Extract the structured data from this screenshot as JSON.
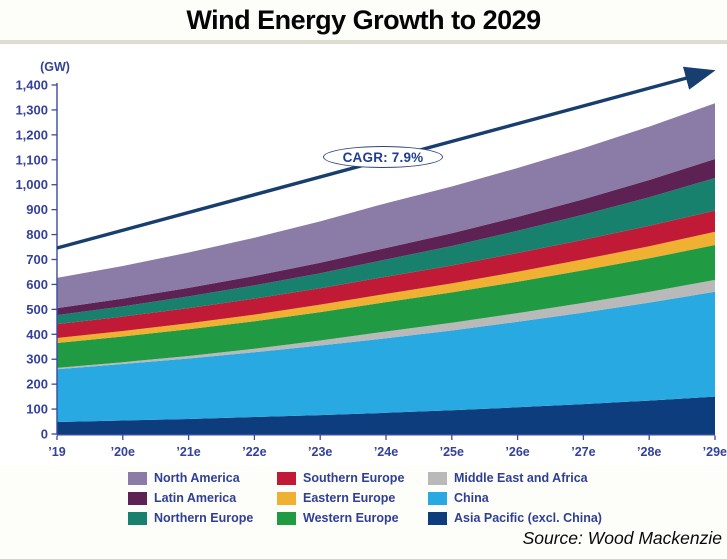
{
  "page": {
    "source": "Source: Wood Mackenzie"
  },
  "chart_data": {
    "type": "area",
    "stacked": true,
    "title": "Wind Energy Growth to 2029",
    "unit_label": "(GW)",
    "cagr_label": "CAGR: 7.9%",
    "categories": [
      "’19",
      "’20e",
      "’21e",
      "’22e",
      "’23e",
      "’24e",
      "’25e",
      "’26e",
      "’27e",
      "’28e",
      "’29e"
    ],
    "ylim": [
      0,
      1400
    ],
    "ytick_step": 100,
    "grid": false,
    "legend_position": "bottom",
    "series": [
      {
        "name": "Asia Pacific (excl. China)",
        "color": "#0D3D7C",
        "values": [
          48,
          54,
          60,
          68,
          76,
          85,
          95,
          107,
          120,
          134,
          150
        ]
      },
      {
        "name": "China",
        "color": "#28A9E1",
        "values": [
          212,
          227,
          243,
          260,
          279,
          299,
          320,
          343,
          367,
          393,
          421
        ]
      },
      {
        "name": "Middle East and Africa",
        "color": "#B9B9B9",
        "values": [
          5,
          7,
          10,
          14,
          20,
          27,
          31,
          35,
          39,
          43,
          47
        ]
      },
      {
        "name": "Western Europe",
        "color": "#219A44",
        "values": [
          100,
          103,
          107,
          110,
          114,
          118,
          122,
          126,
          131,
          135,
          140
        ]
      },
      {
        "name": "Eastern Europe",
        "color": "#F0B032",
        "values": [
          20,
          22,
          24,
          27,
          30,
          33,
          36,
          40,
          44,
          48,
          53
        ]
      },
      {
        "name": "Southern Europe",
        "color": "#C01A36",
        "values": [
          56,
          58,
          61,
          64,
          66,
          69,
          72,
          75,
          78,
          82,
          85
        ]
      },
      {
        "name": "Northern Europe",
        "color": "#17816E",
        "values": [
          36,
          41,
          47,
          53,
          60,
          69,
          78,
          89,
          101,
          115,
          131
        ]
      },
      {
        "name": "Latin America",
        "color": "#5E2154",
        "values": [
          28,
          31,
          34,
          38,
          42,
          46,
          51,
          56,
          62,
          69,
          76
        ]
      },
      {
        "name": "North America",
        "color": "#8B7BA7",
        "values": [
          121,
          131,
          142,
          153,
          166,
          180,
          188,
          196,
          205,
          214,
          224
        ]
      }
    ],
    "annotations": [
      {
        "kind": "trend-arrow",
        "label": "CAGR: 7.9%"
      }
    ]
  },
  "legend": {
    "order": [
      "North America",
      "Latin America",
      "Northern Europe",
      "Southern Europe",
      "Eastern Europe",
      "Western Europe",
      "Middle East and Africa",
      "China",
      "Asia Pacific (excl. China)"
    ]
  },
  "colors": {
    "axis_text": "#34419A",
    "axis_line": "#3a4aa0",
    "arrow": "#173E6E",
    "divider": "#dddccf",
    "cagr_border": "#2e4480",
    "cagr_text": "#1f3e91",
    "background": "#fdfdfa",
    "plot_background": "#ffffff"
  }
}
